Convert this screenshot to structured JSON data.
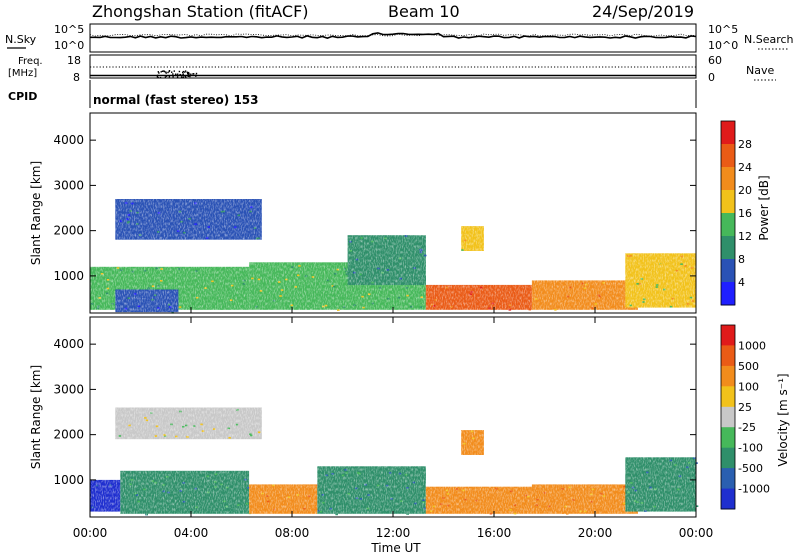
{
  "header": {
    "station": "Zhongshan Station (fitACF)",
    "beam": "Beam 10",
    "date": "24/Sep/2019"
  },
  "top_panel": {
    "left_label": "N.Sky",
    "right_label": "N.Search",
    "left_ticks": [
      "10^5",
      "10^0"
    ],
    "right_ticks": [
      "10^5",
      "10^0"
    ]
  },
  "freq_panel": {
    "left_label_1": "Freq.",
    "left_label_2": "[MHz]",
    "right_label": "Nave",
    "left_ticks": [
      "18",
      "8"
    ],
    "right_ticks": [
      "60",
      "0"
    ]
  },
  "cpid": {
    "label": "CPID",
    "text": "normal (fast stereo) 153"
  },
  "x_axis": {
    "ticks": [
      "00:00",
      "04:00",
      "08:00",
      "12:00",
      "16:00",
      "20:00",
      "00:00"
    ],
    "label": "Time UT"
  },
  "chart_data": [
    {
      "type": "heatmap",
      "panel": "power",
      "ylabel": "Slant Range [km]",
      "yticks": [
        "1000",
        "2000",
        "3000",
        "4000"
      ],
      "ylim": [
        180,
        4600
      ],
      "xlim_hours": [
        0,
        24
      ],
      "colorbar": {
        "label": "Power [dB]",
        "ticks": [
          "4",
          "8",
          "12",
          "16",
          "20",
          "24",
          "28"
        ],
        "colors": [
          "#1f1fff",
          "#2a52b5",
          "#2f8f6a",
          "#46b85a",
          "#f2c21b",
          "#f28c1c",
          "#ea5b16",
          "#e01b1b"
        ]
      },
      "regions": [
        {
          "t0": 0.0,
          "t1": 6.3,
          "r0": 250,
          "r1": 1200,
          "level": 3
        },
        {
          "t0": 1.0,
          "t1": 3.5,
          "r0": 200,
          "r1": 700,
          "level": 1
        },
        {
          "t0": 6.3,
          "t1": 13.3,
          "r0": 250,
          "r1": 1300,
          "level": 3
        },
        {
          "t0": 10.2,
          "t1": 13.3,
          "r0": 800,
          "r1": 1900,
          "level": 2
        },
        {
          "t0": 13.3,
          "t1": 17.5,
          "r0": 250,
          "r1": 800,
          "level": 6
        },
        {
          "t0": 17.5,
          "t1": 21.7,
          "r0": 250,
          "r1": 900,
          "level": 5
        },
        {
          "t0": 14.7,
          "t1": 15.6,
          "r0": 1550,
          "r1": 2100,
          "level": 4
        },
        {
          "t0": 1.0,
          "t1": 6.8,
          "r0": 1800,
          "r1": 2700,
          "level": 1
        },
        {
          "t0": 21.2,
          "t1": 24.0,
          "r0": 300,
          "r1": 1500,
          "level": 4
        }
      ]
    },
    {
      "type": "heatmap",
      "panel": "velocity",
      "ylabel": "Slant Range [km]",
      "yticks": [
        "1000",
        "2000",
        "3000",
        "4000"
      ],
      "ylim": [
        180,
        4600
      ],
      "xlim_hours": [
        0,
        24
      ],
      "colorbar": {
        "label": "Velocity [m s⁻¹]",
        "ticks": [
          "1000",
          "500",
          "100",
          "25",
          "-25",
          "-100",
          "-500",
          "-1000"
        ],
        "colors": [
          "#1f2fcf",
          "#2a5fb0",
          "#2f8f6a",
          "#46b85a",
          "#c8c8c8",
          "#f2c21b",
          "#f28c1c",
          "#ea5b16",
          "#e01b1b"
        ]
      },
      "regions": [
        {
          "t0": 0.0,
          "t1": 1.2,
          "r0": 300,
          "r1": 1000,
          "level": 0
        },
        {
          "t0": 1.2,
          "t1": 6.3,
          "r0": 250,
          "r1": 1200,
          "level": 2
        },
        {
          "t0": 6.3,
          "t1": 9.0,
          "r0": 250,
          "r1": 900,
          "level": 6
        },
        {
          "t0": 9.0,
          "t1": 13.3,
          "r0": 250,
          "r1": 1300,
          "level": 2
        },
        {
          "t0": 13.3,
          "t1": 17.5,
          "r0": 250,
          "r1": 850,
          "level": 6
        },
        {
          "t0": 17.5,
          "t1": 21.7,
          "r0": 250,
          "r1": 900,
          "level": 6
        },
        {
          "t0": 14.7,
          "t1": 15.6,
          "r0": 1550,
          "r1": 2100,
          "level": 6
        },
        {
          "t0": 1.0,
          "t1": 6.8,
          "r0": 1900,
          "r1": 2600,
          "level": 4
        },
        {
          "t0": 21.2,
          "t1": 24.0,
          "r0": 300,
          "r1": 1500,
          "level": 2
        }
      ]
    }
  ]
}
